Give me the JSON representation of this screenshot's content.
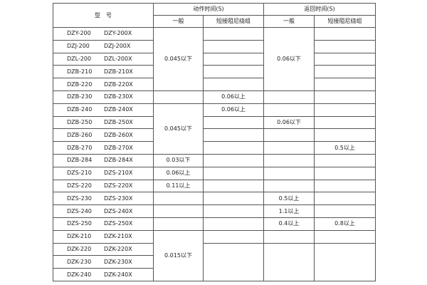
{
  "header": {
    "model": "型　号",
    "action_time": "动作时间(S)",
    "return_time": "返回时间(S)",
    "general": "一般",
    "short_damping": "短接阻尼绕组"
  },
  "models": [
    [
      "DZY-200",
      "DZY-200X"
    ],
    [
      "DZJ-200",
      "DZJ-200X"
    ],
    [
      "DZL-200",
      "DZL-200X"
    ],
    [
      "DZB-210",
      "DZB-210X"
    ],
    [
      "DZB-220",
      "DZB-220X"
    ],
    [
      "DZB-230",
      "DZB-230X"
    ],
    [
      "DZB-240",
      "DZB-240X"
    ],
    [
      "DZB-250",
      "DZB-250X"
    ],
    [
      "DZB-260",
      "DZB-260X"
    ],
    [
      "DZB-270",
      "DZB-270X"
    ],
    [
      "DZB-284",
      "DZB-284X"
    ],
    [
      "DZS-210",
      "DZS-210X"
    ],
    [
      "DZS-220",
      "DZS-220X"
    ],
    [
      "DZS-230",
      "DZS-230X"
    ],
    [
      "DZS-240",
      "DZS-240X"
    ],
    [
      "DZS-250",
      "DZS-250X"
    ],
    [
      "DZK-210",
      "DZK-210X"
    ],
    [
      "DZK-220",
      "DZK-220X"
    ],
    [
      "DZK-230",
      "DZK-230X"
    ],
    [
      "DZK-240",
      "DZK-240X"
    ]
  ],
  "columns": {
    "action_general": [
      {
        "text": "0.045以下",
        "rows": 5
      },
      {
        "text": "",
        "rows": 1
      },
      {
        "text": "0.045以下",
        "rows": 4
      },
      {
        "text": "0.03以下",
        "rows": 1
      },
      {
        "text": "0.06以上",
        "rows": 1
      },
      {
        "text": "0.11以上",
        "rows": 1
      },
      {
        "text": "",
        "rows": 1
      },
      {
        "text": "",
        "rows": 1
      },
      {
        "text": "",
        "rows": 1
      },
      {
        "text": "0.015以下",
        "rows": 4
      }
    ],
    "action_short": [
      {
        "text": "",
        "rows": 1
      },
      {
        "text": "",
        "rows": 1
      },
      {
        "text": "",
        "rows": 1
      },
      {
        "text": "",
        "rows": 1
      },
      {
        "text": "",
        "rows": 1
      },
      {
        "text": "0.06以上",
        "rows": 1
      },
      {
        "text": "0.06以上",
        "rows": 1
      },
      {
        "text": "",
        "rows": 1
      },
      {
        "text": "",
        "rows": 1
      },
      {
        "text": "",
        "rows": 1
      },
      {
        "text": "",
        "rows": 1
      },
      {
        "text": "",
        "rows": 1
      },
      {
        "text": "",
        "rows": 1
      },
      {
        "text": "",
        "rows": 1
      },
      {
        "text": "",
        "rows": 1
      },
      {
        "text": "",
        "rows": 1
      },
      {
        "text": "",
        "rows": 1
      },
      {
        "text": "",
        "rows": 3
      }
    ],
    "return_general": [
      {
        "text": "0.06以下",
        "rows": 5
      },
      {
        "text": "",
        "rows": 1
      },
      {
        "text": "",
        "rows": 1
      },
      {
        "text": "0.06以下",
        "rows": 1
      },
      {
        "text": "",
        "rows": 1
      },
      {
        "text": "",
        "rows": 1
      },
      {
        "text": "",
        "rows": 1
      },
      {
        "text": "",
        "rows": 1
      },
      {
        "text": "",
        "rows": 1
      },
      {
        "text": "0.5以上",
        "rows": 1
      },
      {
        "text": "1.1以上",
        "rows": 1
      },
      {
        "text": "0.4以上",
        "rows": 1
      },
      {
        "text": "",
        "rows": 1
      },
      {
        "text": "",
        "rows": 3
      }
    ],
    "return_short": [
      {
        "text": "",
        "rows": 1
      },
      {
        "text": "",
        "rows": 1
      },
      {
        "text": "",
        "rows": 1
      },
      {
        "text": "",
        "rows": 1
      },
      {
        "text": "",
        "rows": 1
      },
      {
        "text": "",
        "rows": 1
      },
      {
        "text": "",
        "rows": 1
      },
      {
        "text": "",
        "rows": 1
      },
      {
        "text": "",
        "rows": 1
      },
      {
        "text": "0.5以上",
        "rows": 1
      },
      {
        "text": "",
        "rows": 1
      },
      {
        "text": "",
        "rows": 1
      },
      {
        "text": "",
        "rows": 1
      },
      {
        "text": "",
        "rows": 1
      },
      {
        "text": "",
        "rows": 1
      },
      {
        "text": "0.8以上",
        "rows": 1
      },
      {
        "text": "",
        "rows": 1
      },
      {
        "text": "",
        "rows": 3
      }
    ]
  }
}
